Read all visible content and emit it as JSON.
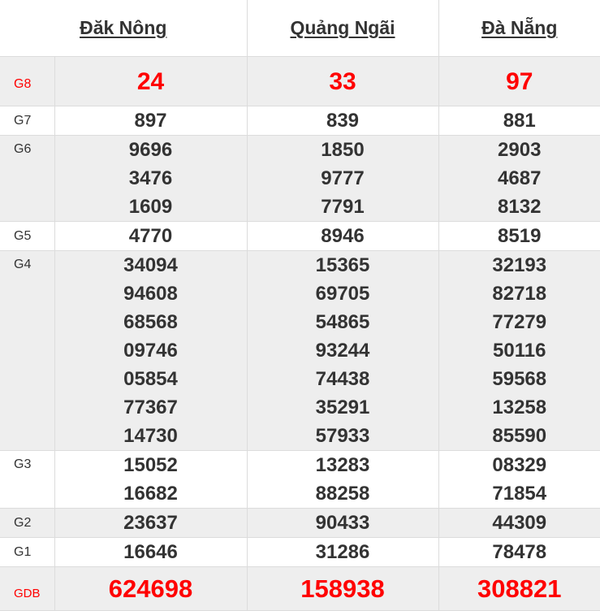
{
  "provinces": [
    "Đăk Nông",
    "Quảng Ngãi",
    "Đà Nẵng"
  ],
  "prizes": [
    {
      "label": "G8",
      "values": [
        [
          "24"
        ],
        [
          "33"
        ],
        [
          "97"
        ]
      ]
    },
    {
      "label": "G7",
      "values": [
        [
          "897"
        ],
        [
          "839"
        ],
        [
          "881"
        ]
      ]
    },
    {
      "label": "G6",
      "values": [
        [
          "9696",
          "3476",
          "1609"
        ],
        [
          "1850",
          "9777",
          "7791"
        ],
        [
          "2903",
          "4687",
          "8132"
        ]
      ]
    },
    {
      "label": "G5",
      "values": [
        [
          "4770"
        ],
        [
          "8946"
        ],
        [
          "8519"
        ]
      ]
    },
    {
      "label": "G4",
      "values": [
        [
          "34094",
          "94608",
          "68568",
          "09746",
          "05854",
          "77367",
          "14730"
        ],
        [
          "15365",
          "69705",
          "54865",
          "93244",
          "74438",
          "35291",
          "57933"
        ],
        [
          "32193",
          "82718",
          "77279",
          "50116",
          "59568",
          "13258",
          "85590"
        ]
      ]
    },
    {
      "label": "G3",
      "values": [
        [
          "15052",
          "16682"
        ],
        [
          "13283",
          "88258"
        ],
        [
          "08329",
          "71854"
        ]
      ]
    },
    {
      "label": "G2",
      "values": [
        [
          "23637"
        ],
        [
          "90433"
        ],
        [
          "44309"
        ]
      ]
    },
    {
      "label": "G1",
      "values": [
        [
          "16646"
        ],
        [
          "31286"
        ],
        [
          "78478"
        ]
      ]
    },
    {
      "label": "GDB",
      "values": [
        [
          "624698"
        ],
        [
          "158938"
        ],
        [
          "308821"
        ]
      ]
    }
  ],
  "colors": {
    "highlight": "#ff0000",
    "text": "#333333",
    "row_alt": "#eeeeee"
  }
}
